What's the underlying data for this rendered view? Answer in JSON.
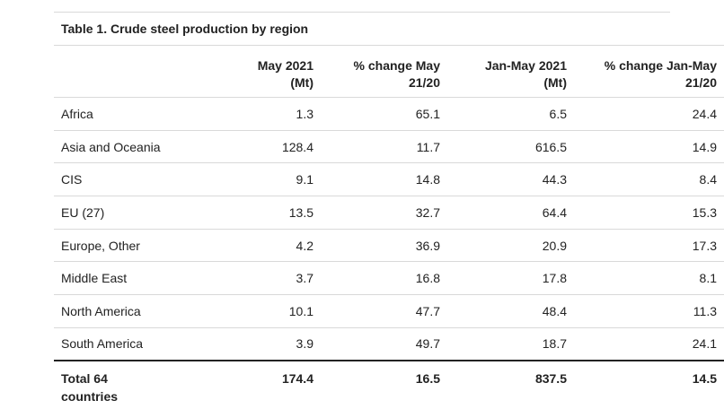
{
  "table": {
    "title": "Table 1. Crude steel production by region",
    "headers": [
      {
        "line1": "",
        "line2": ""
      },
      {
        "line1": "May 2021",
        "line2": "(Mt)"
      },
      {
        "line1": "% change May",
        "line2": "21/20"
      },
      {
        "line1": "Jan-May 2021",
        "line2": "(Mt)"
      },
      {
        "line1": "% change Jan-May",
        "line2": "21/20"
      }
    ],
    "rows": [
      {
        "region": "Africa",
        "may2021": "1.3",
        "pct_may": "65.1",
        "janmay2021": "6.5",
        "pct_janmay": "24.4"
      },
      {
        "region": "Asia and Oceania",
        "may2021": "128.4",
        "pct_may": "11.7",
        "janmay2021": "616.5",
        "pct_janmay": "14.9"
      },
      {
        "region": "CIS",
        "may2021": "9.1",
        "pct_may": "14.8",
        "janmay2021": "44.3",
        "pct_janmay": "8.4"
      },
      {
        "region": "EU (27)",
        "may2021": "13.5",
        "pct_may": "32.7",
        "janmay2021": "64.4",
        "pct_janmay": "15.3"
      },
      {
        "region": "Europe, Other",
        "may2021": "4.2",
        "pct_may": "36.9",
        "janmay2021": "20.9",
        "pct_janmay": "17.3"
      },
      {
        "region": "Middle East",
        "may2021": "3.7",
        "pct_may": "16.8",
        "janmay2021": "17.8",
        "pct_janmay": "8.1"
      },
      {
        "region": "North America",
        "may2021": "10.1",
        "pct_may": "47.7",
        "janmay2021": "48.4",
        "pct_janmay": "11.3"
      },
      {
        "region": "South America",
        "may2021": "3.9",
        "pct_may": "49.7",
        "janmay2021": "18.7",
        "pct_janmay": "24.1"
      }
    ],
    "total": {
      "region_line1": "Total 64",
      "region_line2": "countries",
      "may2021": "174.4",
      "pct_may": "16.5",
      "janmay2021": "837.5",
      "pct_janmay": "14.5"
    }
  }
}
